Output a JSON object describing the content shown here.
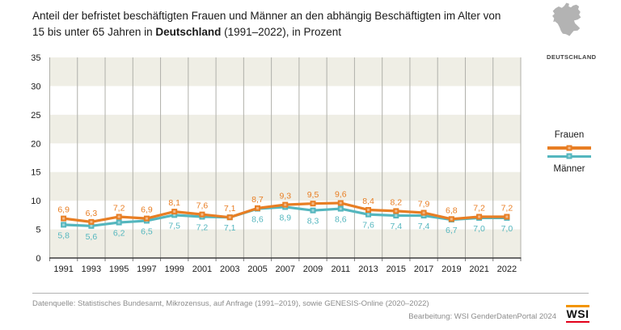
{
  "header": {
    "title_line1": "Anteil der befristet beschäftigten Frauen und Männer an den abhängig Beschäftigten im Alter von",
    "title_line2_pre": "15 bis unter 65 Jahren in ",
    "title_line2_bold": "Deutschland",
    "title_line2_post": " (1991–2022), in Prozent"
  },
  "map": {
    "caption": "DEUTSCHLAND",
    "color": "#b3b3b3"
  },
  "chart_data": {
    "type": "line",
    "title": "Anteil der befristet beschäftigten Frauen und Männer an den abhängig Beschäftigten im Alter von 15 bis unter 65 Jahren in Deutschland (1991–2022), in Prozent",
    "categories": [
      "1991",
      "1993",
      "1995",
      "1997",
      "1999",
      "2001",
      "2003",
      "2005",
      "2007",
      "2009",
      "2011",
      "2013",
      "2015",
      "2017",
      "2019",
      "2021",
      "2022"
    ],
    "series": [
      {
        "name": "Frauen",
        "color": "#e87e24",
        "label_position": "above",
        "values": [
          6.9,
          6.3,
          7.2,
          6.9,
          8.1,
          7.6,
          7.1,
          8.7,
          9.3,
          9.5,
          9.6,
          8.4,
          8.2,
          7.9,
          6.8,
          7.2,
          7.2
        ]
      },
      {
        "name": "Männer",
        "color": "#54b6be",
        "label_position": "below",
        "values": [
          5.8,
          5.6,
          6.2,
          6.5,
          7.5,
          7.2,
          7.1,
          8.6,
          8.9,
          8.3,
          8.6,
          7.6,
          7.4,
          7.4,
          6.7,
          7.0,
          7.0
        ]
      }
    ],
    "ylim": [
      0,
      35
    ],
    "ytick_step": 5,
    "decimal": "comma",
    "legend_position": "right",
    "grid": "vertical-lines-and-horizontal-bands",
    "band_color": "#efeee5",
    "grid_color": "#b0b0aa",
    "axis_color": "#3c3c3c",
    "tick_label_color": "#1a1a1a"
  },
  "footer": {
    "source": "Datenquelle: Statistisches Bundesamt, Mikrozensus, auf Anfrage (1991–2019), sowie GENESIS-Online (2020–2022)",
    "editing": "Bearbeitung: WSI GenderDatenPortal 2024",
    "logo_text": "WSI"
  }
}
